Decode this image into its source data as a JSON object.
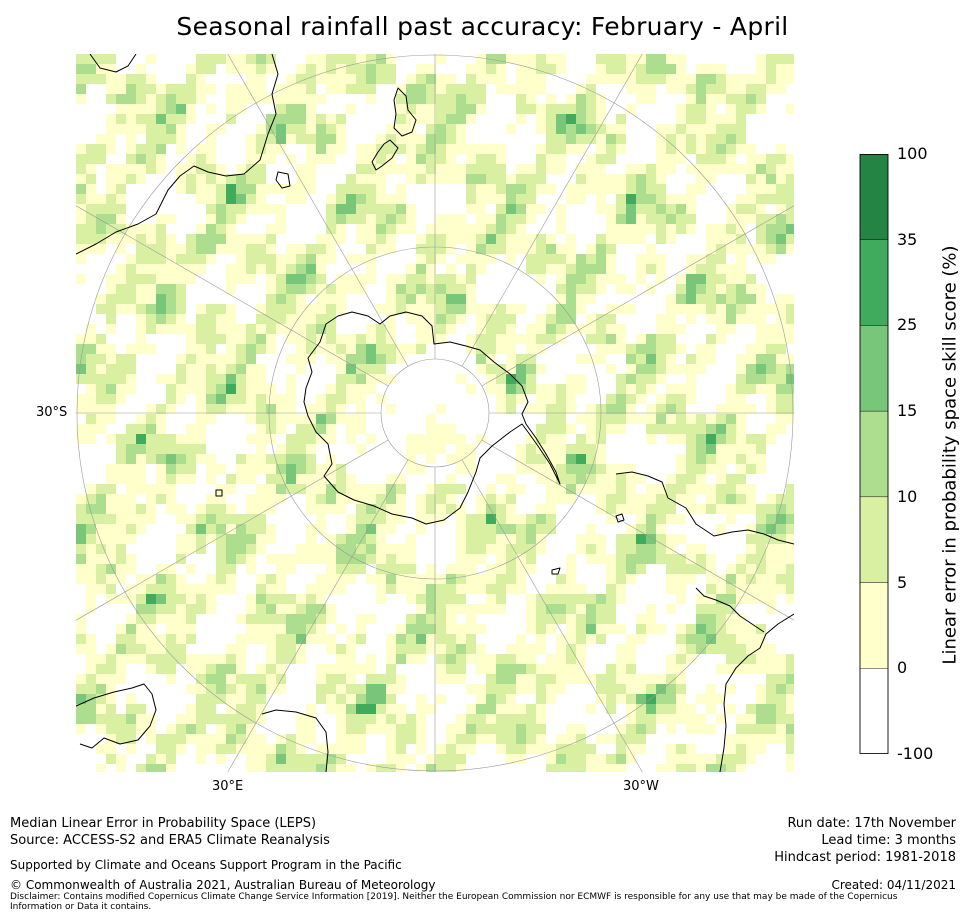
{
  "title": "Seasonal rainfall past accuracy: February - April",
  "map": {
    "projection": "south-polar-stereographic",
    "labels": {
      "lat": "30°S",
      "lon_east": "30°E",
      "lon_west": "30°W"
    },
    "graticule": true,
    "coastlines": [
      "Antarctica",
      "Australia",
      "New Zealand",
      "South America",
      "Southern Africa",
      "Madagascar"
    ],
    "field": "rainfall-skill-score-shading"
  },
  "colorbar": {
    "title": "Linear error in probability space skill score (%)",
    "ticks": [
      "100",
      "35",
      "25",
      "15",
      "10",
      "5",
      "0",
      "-100"
    ],
    "bins": [
      {
        "from": -100,
        "to": 0,
        "color": "#ffffff"
      },
      {
        "from": 0,
        "to": 5,
        "color": "#ffffcc"
      },
      {
        "from": 5,
        "to": 10,
        "color": "#d9f0a3"
      },
      {
        "from": 10,
        "to": 15,
        "color": "#addd8e"
      },
      {
        "from": 15,
        "to": 25,
        "color": "#78c679"
      },
      {
        "from": 25,
        "to": 35,
        "color": "#41ab5d"
      },
      {
        "from": 35,
        "to": 100,
        "color": "#238443"
      }
    ]
  },
  "footer": {
    "left": {
      "line1": "Median Linear Error in Probability Space (LEPS)",
      "line2": "Source: ACCESS-S2 and ERA5 Climate Reanalysis",
      "support": "Supported by Climate and Oceans Support Program in the Pacific",
      "copyright": "© Commonwealth of Australia 2021, Australian Bureau of Meteorology",
      "disclaimer": "Disclaimer: Contains modified Copernicus Climate Change Service Information [2019]. Neither the European Commission nor ECMWF is responsible for any use that may be made of the Copernicus Information or Data it contains."
    },
    "right": {
      "run_date": "Run date: 17th November",
      "lead_time": "Lead time: 3 months",
      "hindcast": "Hindcast period: 1981-2018",
      "created": "Created: 04/11/2021"
    }
  }
}
